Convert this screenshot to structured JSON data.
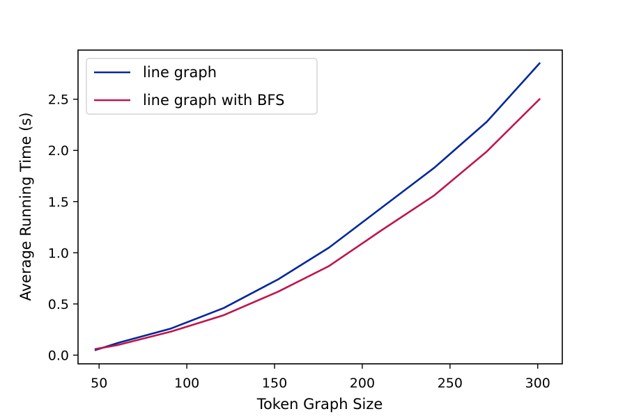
{
  "chart_data": {
    "type": "line",
    "xlabel": "Token Graph Size",
    "ylabel": "Average Running Time (s)",
    "xlim": [
      38,
      314
    ],
    "ylim": [
      -0.085,
      2.98
    ],
    "xticks": [
      50,
      100,
      150,
      200,
      250,
      300
    ],
    "xtick_labels": [
      "50",
      "100",
      "150",
      "200",
      "250",
      "300"
    ],
    "yticks": [
      0.0,
      0.5,
      1.0,
      1.5,
      2.0,
      2.5
    ],
    "ytick_labels": [
      "0.0",
      "0.5",
      "1.0",
      "1.5",
      "2.0",
      "2.5"
    ],
    "grid": false,
    "legend_position": "top-left",
    "series": [
      {
        "name": "line graph",
        "color": "#00279b",
        "x": [
          48,
          61,
          91,
          121,
          152,
          181,
          211,
          241,
          271,
          301
        ],
        "y": [
          0.05,
          0.12,
          0.26,
          0.46,
          0.74,
          1.05,
          1.44,
          1.83,
          2.28,
          2.85
        ]
      },
      {
        "name": "line graph with BFS",
        "color": "#c0154a",
        "x": [
          48,
          61,
          91,
          121,
          152,
          181,
          211,
          241,
          271,
          301
        ],
        "y": [
          0.06,
          0.1,
          0.23,
          0.39,
          0.62,
          0.87,
          1.22,
          1.56,
          1.99,
          2.5
        ]
      }
    ]
  }
}
